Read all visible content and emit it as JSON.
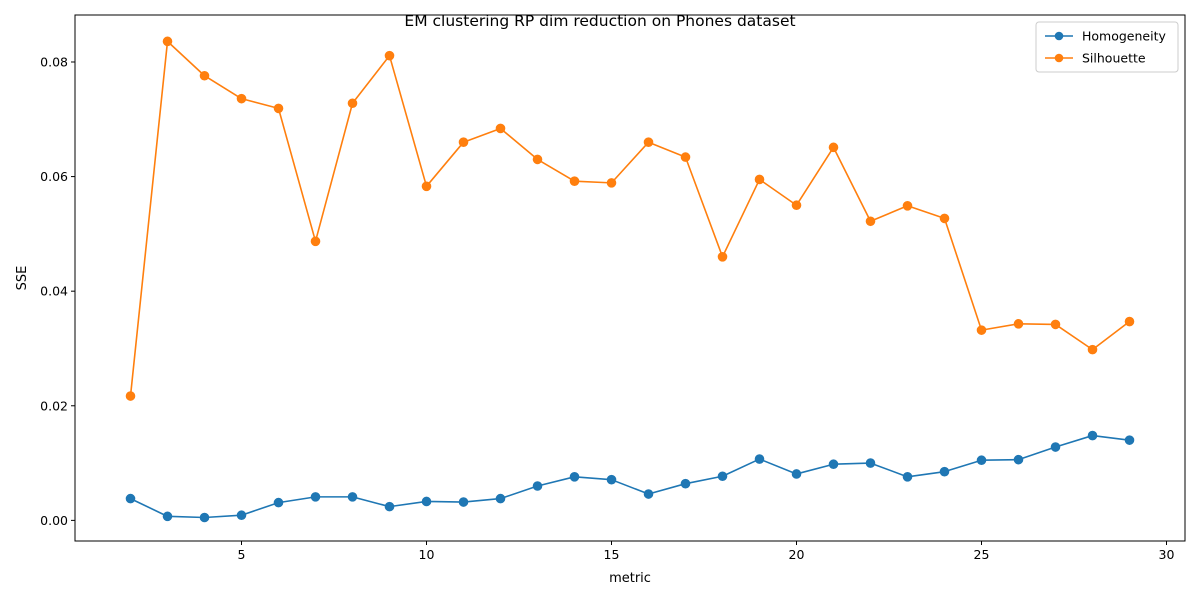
{
  "chart_data": {
    "type": "line",
    "title": "EM clustering RP dim reduction on Phones dataset",
    "xlabel": "metric",
    "ylabel": "SSE",
    "xlim": [
      0.5,
      30.5
    ],
    "ylim": [
      -0.0036,
      0.0882
    ],
    "xticks": [
      5,
      10,
      15,
      20,
      25,
      30
    ],
    "yticks": [
      0.0,
      0.02,
      0.04,
      0.06,
      0.08
    ],
    "ytick_labels": [
      "0.00",
      "0.02",
      "0.04",
      "0.06",
      "0.08"
    ],
    "grid": false,
    "legend_position": "top-right",
    "x": [
      2,
      3,
      4,
      5,
      6,
      7,
      8,
      9,
      10,
      11,
      12,
      13,
      14,
      15,
      16,
      17,
      18,
      19,
      20,
      21,
      22,
      23,
      24,
      25,
      26,
      27,
      28,
      29
    ],
    "series": [
      {
        "name": "Homogeneity",
        "color": "#1f77b4",
        "marker": "circle",
        "values": [
          0.0038,
          0.0007,
          0.0005,
          0.0009,
          0.0031,
          0.0041,
          0.0041,
          0.0024,
          0.0033,
          0.0032,
          0.0038,
          0.006,
          0.0076,
          0.0071,
          0.0046,
          0.0064,
          0.0077,
          0.0107,
          0.0081,
          0.0098,
          0.01,
          0.0076,
          0.0085,
          0.0105,
          0.0106,
          0.0128,
          0.0148,
          0.014
        ]
      },
      {
        "name": "Silhouette",
        "color": "#ff7f0e",
        "marker": "circle",
        "values": [
          0.0217,
          0.0836,
          0.0776,
          0.0736,
          0.0719,
          0.0487,
          0.0728,
          0.0811,
          0.0583,
          0.066,
          0.0684,
          0.063,
          0.0592,
          0.0589,
          0.066,
          0.0634,
          0.046,
          0.0595,
          0.055,
          0.0651,
          0.0522,
          0.0549,
          0.0527,
          0.0332,
          0.0343,
          0.0342,
          0.0298,
          0.0347
        ]
      }
    ]
  }
}
